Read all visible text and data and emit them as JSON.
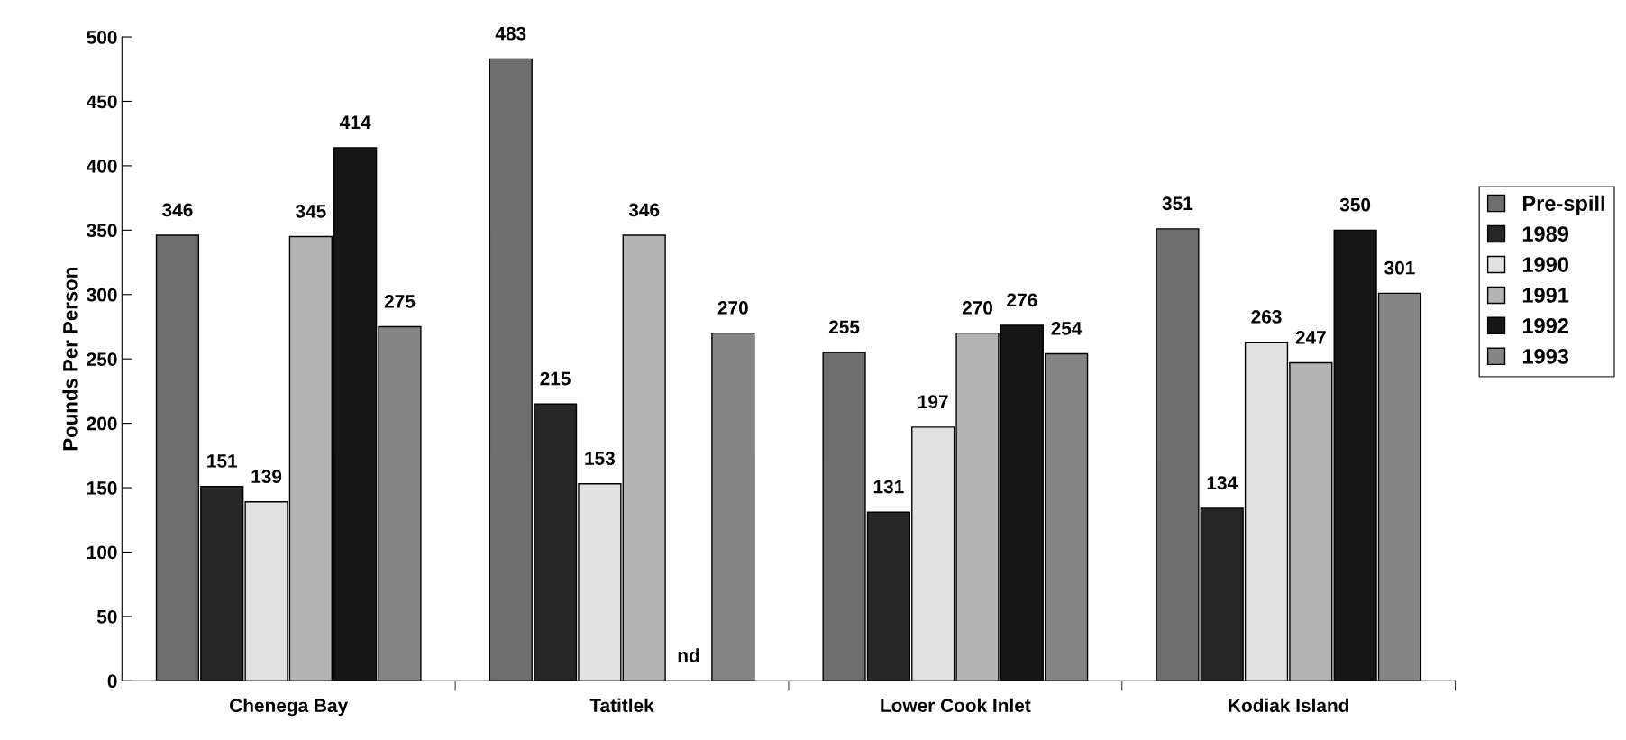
{
  "chart_data": {
    "type": "bar",
    "ylabel": "Pounds Per Person",
    "categories": [
      "Chenega Bay",
      "Tatitlek",
      "Lower Cook Inlet",
      "Kodiak Island"
    ],
    "series": [
      {
        "name": "Pre-spill",
        "color": "#6e6e6e",
        "values": [
          346,
          483,
          255,
          351
        ],
        "value_labels": [
          "346",
          "483",
          "255",
          "351"
        ]
      },
      {
        "name": "1989",
        "color": "#262626",
        "values": [
          151,
          215,
          131,
          134
        ],
        "value_labels": [
          "151",
          "215",
          "131",
          "134"
        ]
      },
      {
        "name": "1990",
        "color": "#e2e2e2",
        "values": [
          139,
          153,
          197,
          263
        ],
        "value_labels": [
          "139",
          "153",
          "197",
          "263"
        ]
      },
      {
        "name": "1991",
        "color": "#b4b4b4",
        "values": [
          345,
          346,
          270,
          247
        ],
        "value_labels": [
          "345",
          "346",
          "270",
          "247"
        ]
      },
      {
        "name": "1992",
        "color": "#161616",
        "values": [
          414,
          null,
          276,
          350
        ],
        "value_labels": [
          "414",
          "nd",
          "276",
          "350"
        ]
      },
      {
        "name": "1993",
        "color": "#858585",
        "values": [
          275,
          270,
          254,
          301
        ],
        "value_labels": [
          "275",
          "270",
          "254",
          "301"
        ]
      }
    ],
    "ylim": [
      0,
      500
    ],
    "yticks": [
      0,
      50,
      100,
      150,
      200,
      250,
      300,
      350,
      400,
      450,
      500
    ],
    "grid": false,
    "legend": "right"
  }
}
